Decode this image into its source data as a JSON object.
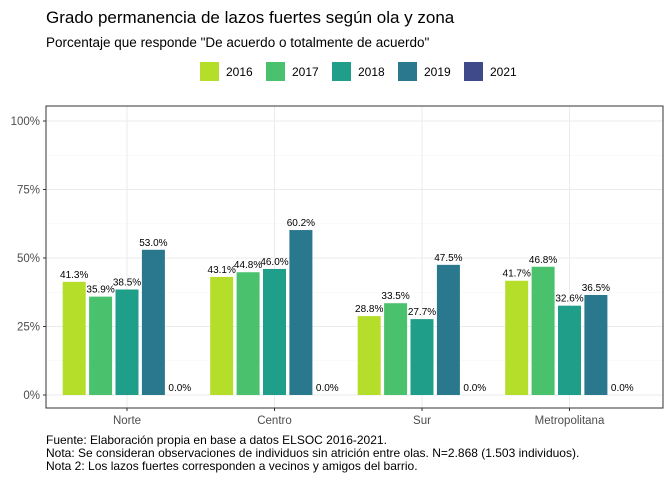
{
  "chart_data": {
    "type": "bar",
    "title": "Grado permanencia de lazos fuertes  según ola y zona",
    "subtitle": "Porcentaje que responde \"De acuerdo o totalmente de acuerdo\"",
    "xlabel": "",
    "ylabel": "",
    "categories": [
      "Norte",
      "Centro",
      "Sur",
      "Metropolitana"
    ],
    "series": [
      {
        "name": "2016",
        "color": "#b5de2b",
        "values": [
          41.3,
          43.1,
          28.8,
          41.7
        ],
        "labels": [
          "41.3%",
          "43.1%",
          "28.8%",
          "41.7%"
        ]
      },
      {
        "name": "2017",
        "color": "#4ac16d",
        "values": [
          35.9,
          44.8,
          33.5,
          46.8
        ],
        "labels": [
          "35.9%",
          "44.8%",
          "33.5%",
          "46.8%"
        ]
      },
      {
        "name": "2018",
        "color": "#1f9e89",
        "values": [
          38.5,
          46.0,
          27.7,
          32.6
        ],
        "labels": [
          "38.5%",
          "46.0%",
          "27.7%",
          "32.6%"
        ]
      },
      {
        "name": "2019",
        "color": "#2a788e",
        "values": [
          53.0,
          60.2,
          47.5,
          36.5
        ],
        "labels": [
          "53.0%",
          "60.2%",
          "47.5%",
          "36.5%"
        ]
      },
      {
        "name": "2021",
        "color": "#3e4a89",
        "values": [
          0.0,
          0.0,
          0.0,
          0.0
        ],
        "labels": [
          "0.0%",
          "0.0%",
          "0.0%",
          "0.0%"
        ]
      }
    ],
    "ylim": [
      0,
      100
    ],
    "yticks": [
      0,
      25,
      50,
      75,
      100
    ],
    "ytick_labels": [
      "0%",
      "25%",
      "50%",
      "75%",
      "100%"
    ],
    "grid": true,
    "legend_position": "top"
  },
  "caption": [
    "Fuente: Elaboración propia en base a datos ELSOC 2016-2021.",
    "Nota: Se consideran observaciones de individuos sin atrición entre olas. N=2.868 (1.503 individuos).",
    "Nota 2: Los lazos fuertes corresponden a vecinos y amigos del barrio."
  ]
}
